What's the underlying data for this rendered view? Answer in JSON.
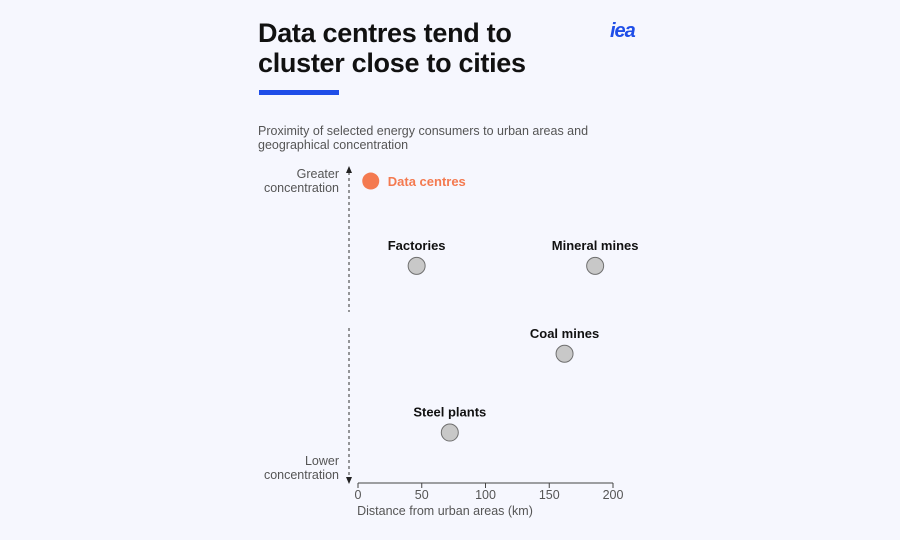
{
  "header": {
    "title": "Data centres tend to cluster close to cities",
    "logo": "iea",
    "subtitle": "Proximity of selected energy consumers to urban areas and geographical concentration"
  },
  "colors": {
    "accent": "#1f4ee8",
    "logo": "#1f4ee8",
    "highlight": "#f47a50",
    "point_fill": "#c8c8c8",
    "point_stroke": "#6f6f6f"
  },
  "chart_data": {
    "type": "scatter",
    "title": "Data centres tend to cluster close to cities",
    "subtitle": "Proximity of selected energy consumers to urban areas and geographical concentration",
    "xlabel": "Distance from urban areas (km)",
    "ylabel_top": "Greater concentration",
    "ylabel_bottom": "Lower concentration",
    "xlim": [
      0,
      200
    ],
    "xticks": [
      "0",
      "50",
      "100",
      "150",
      "200"
    ],
    "ylim": [
      0,
      1
    ],
    "grid": false,
    "legend": "none",
    "points": [
      {
        "label": "Data centres",
        "x": 10,
        "y": 0.98,
        "highlight": true
      },
      {
        "label": "Factories",
        "x": 46,
        "y": 0.7,
        "highlight": false
      },
      {
        "label": "Mineral mines",
        "x": 186,
        "y": 0.7,
        "highlight": false
      },
      {
        "label": "Coal mines",
        "x": 162,
        "y": 0.41,
        "highlight": false
      },
      {
        "label": "Steel plants",
        "x": 72,
        "y": 0.15,
        "highlight": false
      }
    ]
  }
}
